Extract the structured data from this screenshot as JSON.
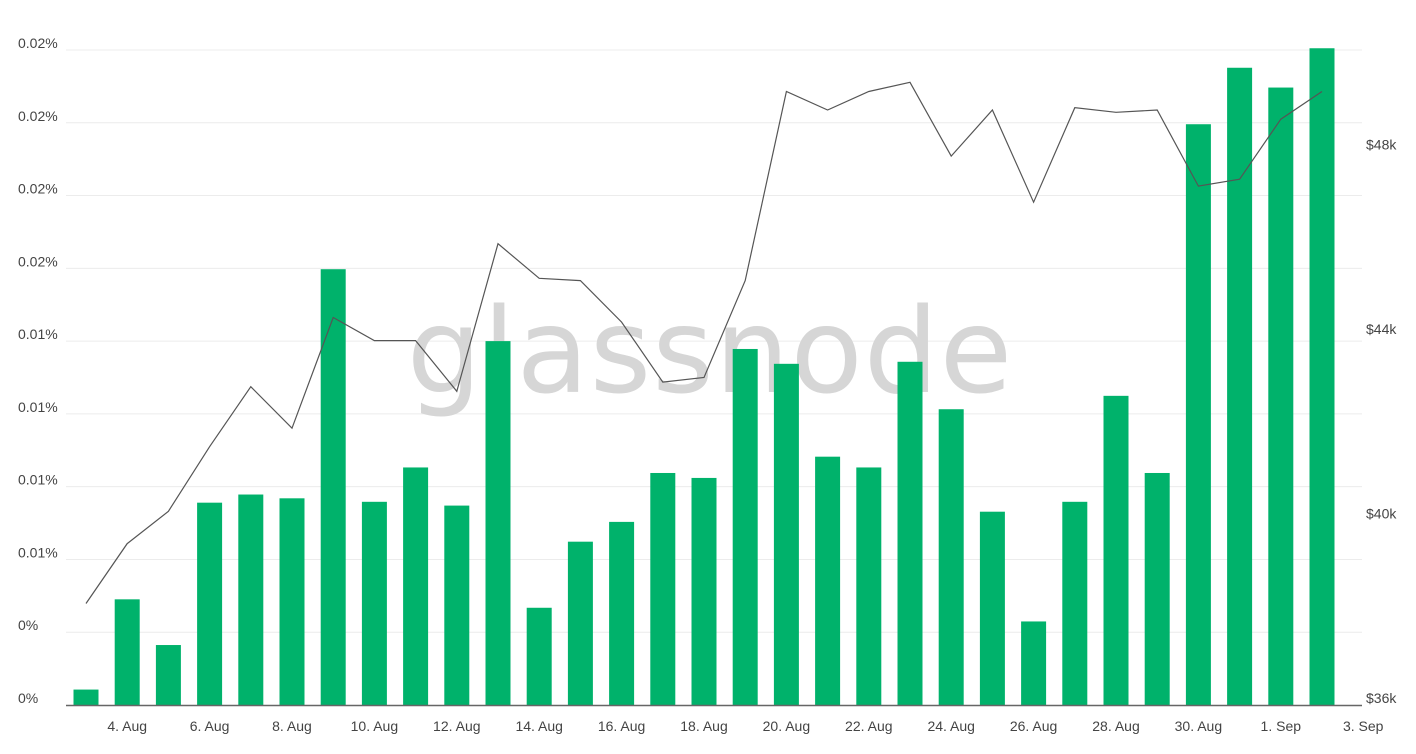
{
  "watermark": "glassnode",
  "chart_data": {
    "type": "bar",
    "y_axis_left": {
      "tick_labels": [
        "0%",
        "0%",
        "0.01%",
        "0.01%",
        "0.01%",
        "0.01%",
        "0.02%",
        "0.02%",
        "0.02%",
        "0.02%"
      ],
      "range": [
        0,
        0.0225
      ]
    },
    "y_axis_right": {
      "tick_labels": [
        "$36k",
        "$40k",
        "$44k",
        "$48k"
      ],
      "ticks": [
        36000,
        40000,
        44000,
        48000
      ],
      "range": [
        36000,
        50200
      ]
    },
    "x_tick_labels": [
      "4. Aug",
      "6. Aug",
      "8. Aug",
      "10. Aug",
      "12. Aug",
      "14. Aug",
      "16. Aug",
      "18. Aug",
      "20. Aug",
      "22. Aug",
      "24. Aug",
      "26. Aug",
      "28. Aug",
      "30. Aug",
      "1. Sep",
      "3. Sep"
    ],
    "categories": [
      "3. Aug",
      "4. Aug",
      "5. Aug",
      "6. Aug",
      "7. Aug",
      "8. Aug",
      "9. Aug",
      "10. Aug",
      "11. Aug",
      "12. Aug",
      "13. Aug",
      "14. Aug",
      "15. Aug",
      "16. Aug",
      "17. Aug",
      "18. Aug",
      "19. Aug",
      "20. Aug",
      "21. Aug",
      "22. Aug",
      "23. Aug",
      "24. Aug",
      "25. Aug",
      "26. Aug",
      "27. Aug",
      "28. Aug",
      "29. Aug",
      "30. Aug",
      "31. Aug",
      "1. Sep",
      "2. Sep"
    ],
    "series": [
      {
        "type": "bar",
        "color": "#00b26b",
        "values": [
          0.00053,
          0.00363,
          0.00206,
          0.00695,
          0.00723,
          0.0071,
          0.01497,
          0.00698,
          0.00816,
          0.00685,
          0.0125,
          0.00334,
          0.00561,
          0.00629,
          0.00797,
          0.0078,
          0.01223,
          0.01172,
          0.00853,
          0.00816,
          0.01179,
          0.01016,
          0.00664,
          0.00287,
          0.00698,
          0.01062,
          0.00797,
          0.01995,
          0.02189,
          0.02121,
          0.02256
        ]
      },
      {
        "type": "line",
        "color": "#555555",
        "values": [
          38200,
          39500,
          40200,
          41600,
          42900,
          42000,
          44400,
          43900,
          43900,
          42800,
          46000,
          45250,
          45200,
          44300,
          43000,
          43100,
          45200,
          49300,
          48900,
          49300,
          49500,
          47900,
          48900,
          46900,
          48950,
          48850,
          48900,
          47250,
          47400,
          48700,
          49300
        ]
      }
    ]
  }
}
